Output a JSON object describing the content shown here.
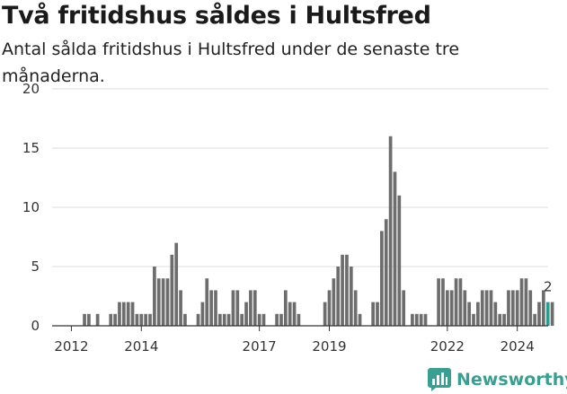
{
  "title": "Två fritidshus såldes i Hultsfred",
  "subtitle": "Antal sålda fritidshus i Hultsfred under de senaste tre månaderna.",
  "brand": {
    "name": "Newsworthy",
    "color": "#3a9e91"
  },
  "chart_data": {
    "type": "bar",
    "ylim": [
      0,
      20
    ],
    "yticks": [
      0,
      5,
      10,
      15,
      20
    ],
    "xticks": [
      "2012",
      "2014",
      "2017",
      "2019",
      "2022",
      "2024"
    ],
    "xtick_positions": [
      3,
      19,
      46,
      62,
      89,
      105
    ],
    "grid": true,
    "bar_color": "#6d6d6d",
    "highlight_color": "#2a9d8f",
    "highlight_index": 112,
    "highlight_label": "2",
    "values": [
      0,
      0,
      0,
      0,
      0,
      0,
      1,
      1,
      0,
      1,
      0,
      0,
      1,
      1,
      2,
      2,
      2,
      2,
      1,
      1,
      1,
      1,
      5,
      4,
      4,
      4,
      6,
      7,
      3,
      1,
      0,
      0,
      1,
      2,
      4,
      3,
      3,
      1,
      1,
      1,
      3,
      3,
      1,
      2,
      3,
      3,
      1,
      1,
      0,
      0,
      1,
      1,
      3,
      2,
      2,
      1,
      0,
      0,
      0,
      0,
      0,
      2,
      3,
      4,
      5,
      6,
      6,
      5,
      3,
      1,
      0,
      0,
      2,
      2,
      8,
      9,
      16,
      13,
      11,
      3,
      0,
      1,
      1,
      1,
      1,
      0,
      0,
      4,
      4,
      3,
      3,
      4,
      4,
      3,
      2,
      1,
      2,
      3,
      3,
      3,
      2,
      1,
      1,
      3,
      3,
      3,
      4,
      4,
      3,
      1,
      2,
      3,
      2,
      2
    ]
  }
}
